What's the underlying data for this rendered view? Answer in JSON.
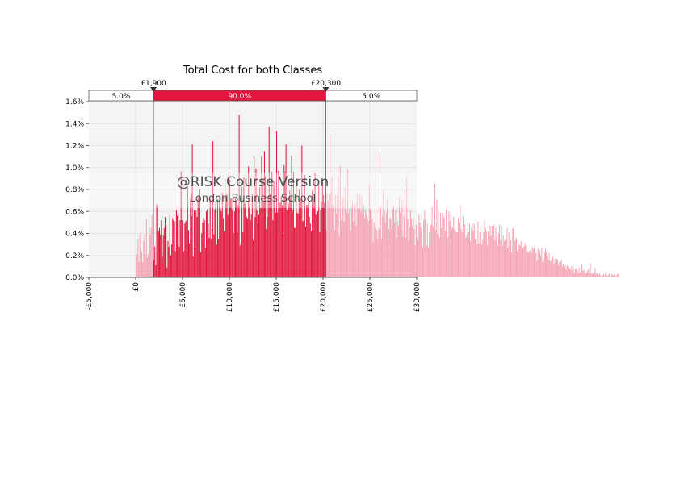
{
  "chart_data": {
    "type": "bar",
    "title": "Total Cost for both Classes",
    "watermark": {
      "line1": "@RISK Course Version",
      "line2": "London Business School"
    },
    "xlim": [
      -5000,
      30000
    ],
    "ylim": [
      0,
      0.016
    ],
    "x_ticks": [
      -5000,
      0,
      5000,
      10000,
      15000,
      20000,
      25000,
      30000
    ],
    "x_tick_labels": [
      "-£5,000",
      "£0",
      "£5,000",
      "£10,000",
      "£15,000",
      "£20,000",
      "£25,000",
      "£30,000"
    ],
    "y_ticks": [
      0,
      0.002,
      0.004,
      0.006,
      0.008,
      0.01,
      0.012,
      0.014,
      0.016
    ],
    "y_tick_labels": [
      "0.0%",
      "0.2%",
      "0.4%",
      "0.6%",
      "0.8%",
      "1.0%",
      "1.2%",
      "1.4%",
      "1.6%"
    ],
    "grid": true,
    "bin_width": 100,
    "x_start": 0,
    "x_end": 26100,
    "values": [
      0.0019,
      0.0021,
      0.0035,
      0.0014,
      0.0039,
      0.0026,
      0.0023,
      0.0014,
      0.0033,
      0.0039,
      0.0021,
      0.0053,
      0.0018,
      0.0021,
      0.0046,
      0.0039,
      0.0045,
      0.0057,
      0.0006,
      0.0016,
      0.0028,
      0.0011,
      0.0067,
      0.0066,
      0.0042,
      0.0045,
      0.0039,
      0.0052,
      0.0019,
      0.0038,
      0.0045,
      0.0055,
      0.0048,
      0.0009,
      0.0033,
      0.0028,
      0.0057,
      0.002,
      0.003,
      0.0054,
      0.0052,
      0.0051,
      0.0024,
      0.0061,
      0.0056,
      0.0057,
      0.0028,
      0.0052,
      0.0096,
      0.0052,
      0.0049,
      0.0024,
      0.0049,
      0.0051,
      0.0052,
      0.0083,
      0.0043,
      0.0031,
      0.0072,
      0.0056,
      0.0121,
      0.0019,
      0.0061,
      0.0027,
      0.0061,
      0.0055,
      0.0072,
      0.0075,
      0.008,
      0.0023,
      0.004,
      0.005,
      0.0054,
      0.0052,
      0.0027,
      0.006,
      0.0062,
      0.0049,
      0.0036,
      0.0072,
      0.0035,
      0.0044,
      0.0124,
      0.0039,
      0.0062,
      0.0068,
      0.003,
      0.0071,
      0.0035,
      0.0073,
      0.0063,
      0.006,
      0.0077,
      0.0054,
      0.0042,
      0.009,
      0.0074,
      0.0076,
      0.0057,
      0.0096,
      0.0089,
      0.0072,
      0.0072,
      0.0061,
      0.004,
      0.006,
      0.0072,
      0.0069,
      0.0041,
      0.0066,
      0.0148,
      0.0029,
      0.0032,
      0.0082,
      0.0041,
      0.0091,
      0.0067,
      0.007,
      0.0055,
      0.0053,
      0.0101,
      0.0064,
      0.0052,
      0.0057,
      0.0073,
      0.0034,
      0.011,
      0.0055,
      0.0099,
      0.0061,
      0.0049,
      0.0057,
      0.0082,
      0.0063,
      0.011,
      0.0089,
      0.0069,
      0.0115,
      0.0092,
      0.0044,
      0.0055,
      0.0074,
      0.0137,
      0.0076,
      0.0077,
      0.0096,
      0.0052,
      0.0087,
      0.0082,
      0.0059,
      0.0133,
      0.0059,
      0.0097,
      0.0068,
      0.0068,
      0.0074,
      0.0066,
      0.0039,
      0.0102,
      0.0096,
      0.0121,
      0.0061,
      0.007,
      0.0067,
      0.0079,
      0.0073,
      0.0111,
      0.0061,
      0.0096,
      0.0045,
      0.0045,
      0.0087,
      0.0059,
      0.0058,
      0.008,
      0.0074,
      0.007,
      0.012,
      0.0051,
      0.0052,
      0.0093,
      0.0046,
      0.0066,
      0.0066,
      0.0069,
      0.0055,
      0.0049,
      0.0042,
      0.0079,
      0.007,
      0.0076,
      0.0095,
      0.0057,
      0.006,
      0.006,
      0.0084,
      0.0041,
      0.0061,
      0.0069,
      0.009,
      0.0075,
      0.0068,
      0.0044,
      0.0043,
      0.0077,
      0.007,
      0.0076,
      0.013,
      0.0078,
      0.0092,
      0.0066,
      0.0064,
      0.0043,
      0.0075,
      0.0058,
      0.0075,
      0.0092,
      0.0038,
      0.0101,
      0.0052,
      0.0069,
      0.0073,
      0.0051,
      0.0082,
      0.0062,
      0.0059,
      0.0098,
      0.0058,
      0.0063,
      0.0042,
      0.0063,
      0.0069,
      0.0051,
      0.0066,
      0.0068,
      0.0047,
      0.0077,
      0.0062,
      0.0063,
      0.0076,
      0.006,
      0.0074,
      0.0057,
      0.0066,
      0.0054,
      0.0062,
      0.0057,
      0.0053,
      0.0051,
      0.0085,
      0.0062,
      0.006,
      0.0053,
      0.0032,
      0.005,
      0.0045,
      0.0115,
      0.0043,
      0.0035,
      0.0044,
      0.0046,
      0.0063,
      0.0035,
      0.0056,
      0.008,
      0.0062,
      0.005,
      0.0059,
      0.0071,
      0.0033,
      0.0044,
      0.0054,
      0.0053,
      0.0043,
      0.0062,
      0.0065,
      0.005,
      0.0061,
      0.0036,
      0.0051,
      0.0047,
      0.0073,
      0.0059,
      0.0043,
      0.007,
      0.0037,
      0.0056,
      0.008,
      0.0036,
      0.0091,
      0.0053,
      0.0033,
      0.0045,
      0.0061,
      0.0053,
      0.0047,
      0.0054,
      0.0044,
      0.0029,
      0.0048,
      0.0036,
      0.0033,
      0.0057,
      0.005,
      0.0045,
      0.0056,
      0.0027,
      0.0052,
      0.0061,
      0.0053,
      0.0029,
      0.0049,
      0.0027,
      0.0041,
      0.0047,
      0.0048,
      0.0064,
      0.0046,
      0.005,
      0.0085,
      0.0043,
      0.0071,
      0.0039,
      0.0061,
      0.0036,
      0.0059,
      0.0045,
      0.0059,
      0.0056,
      0.0054,
      0.0042,
      0.0062,
      0.0029,
      0.0037,
      0.006,
      0.0051,
      0.0058,
      0.0044,
      0.0046,
      0.0055,
      0.0044,
      0.0042,
      0.0041,
      0.0041,
      0.0054,
      0.005,
      0.0065,
      0.0044,
      0.0041,
      0.0056,
      0.0048,
      0.0048,
      0.0036,
      0.0039,
      0.0045,
      0.0041,
      0.0049,
      0.0033,
      0.0045,
      0.0049,
      0.0042,
      0.0049,
      0.0035,
      0.0041,
      0.003,
      0.0051,
      0.0031,
      0.0041,
      0.0047,
      0.003,
      0.0034,
      0.0041,
      0.0052,
      0.0045,
      0.0042,
      0.0029,
      0.0042,
      0.0036,
      0.0047,
      0.0038,
      0.0047,
      0.0038,
      0.0048,
      0.0034,
      0.0046,
      0.0037,
      0.0029,
      0.004,
      0.0048,
      0.0034,
      0.0047,
      0.0029,
      0.0038,
      0.0033,
      0.0035,
      0.0034,
      0.0045,
      0.0027,
      0.0041,
      0.0028,
      0.0034,
      0.0023,
      0.0045,
      0.0044,
      0.0033,
      0.0034,
      0.0036,
      0.0024,
      0.0026,
      0.003,
      0.0029,
      0.0033,
      0.0027,
      0.0027,
      0.0028,
      0.0031,
      0.0029,
      0.0023,
      0.0024,
      0.0022,
      0.0024,
      0.0025,
      0.0022,
      0.0028,
      0.0026,
      0.0027,
      0.0022,
      0.0023,
      0.0015,
      0.0026,
      0.0017,
      0.0024,
      0.002,
      0.0027,
      0.0014,
      0.0017,
      0.0022,
      0.0026,
      0.0023,
      0.0019,
      0.0016,
      0.0022,
      0.0015,
      0.0015,
      0.0018,
      0.0019,
      0.0012,
      0.0017,
      0.0014,
      0.0017,
      0.0016,
      0.0011,
      0.0014,
      0.0014,
      0.0016,
      0.001,
      0.0012,
      0.001,
      0.0011,
      0.0007,
      0.0011,
      0.001,
      0.0009,
      0.0008,
      0.0007,
      0.001,
      0.0006,
      0.0008,
      0.0004,
      0.0008,
      0.0008,
      0.0006,
      0.0004,
      0.0009,
      0.0004,
      0.0004,
      0.0012,
      0.0006,
      0.0007,
      0.0004,
      0.0004,
      0.0004,
      0.0006,
      0.0008,
      0.0004,
      0.0013,
      0.0004,
      0.0003,
      0.0004,
      0.0004,
      0.0009,
      0.0003,
      0.0004,
      0.0003,
      0.0002,
      0.0004,
      0.0002,
      0.0001,
      0.0002,
      0.0003,
      0.0001,
      0.0004,
      0.0002,
      0.0001,
      0.0002,
      0.0004,
      0.0001,
      0.0001,
      0.0003,
      0.0002,
      0.0002,
      0.0003,
      0.0001,
      0.0002,
      0.0003,
      0.0004
    ],
    "interval": {
      "lower": 1900,
      "upper": 20300,
      "lower_label": "£1,900",
      "upper_label": "£20,300",
      "left_pct_label": "5.0%",
      "mid_pct_label": "90.0%",
      "right_pct_label": "5.0%"
    },
    "colors": {
      "bar": "#e3173d",
      "bar_tail": "#f4a6b4",
      "interval_bar": "#e3173d",
      "plot_background": "#f4f4f4",
      "grid": "#e3e3e3",
      "text": "#000000",
      "watermark_text": "#333333"
    }
  }
}
